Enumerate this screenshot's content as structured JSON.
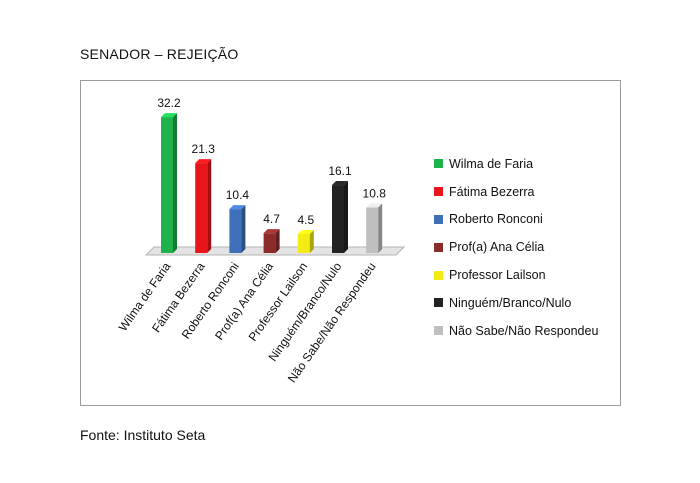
{
  "heading": "SENADOR – REJEIÇÃO",
  "source": "Fonte: Instituto Seta",
  "chart_data": {
    "type": "bar",
    "title": "",
    "xlabel": "",
    "ylabel": "",
    "ylim": [
      0,
      35
    ],
    "grid": false,
    "legend_position": "right",
    "categories": [
      "Wilma de Faria",
      "Fátima Bezerra",
      "Roberto Ronconi",
      "Prof(a) Ana Célia",
      "Professor Lailson",
      "Ninguém/Branco/Nulo",
      "Não Sabe/Não Respondeu"
    ],
    "values": [
      32.2,
      21.3,
      10.4,
      4.7,
      4.5,
      16.1,
      10.8
    ],
    "value_labels": [
      "32.2",
      "21.3",
      "10.4",
      "4.7",
      "4.5",
      "16.1",
      "10.8"
    ],
    "colors": [
      "#1db34a",
      "#e8161b",
      "#3f6fb8",
      "#8b2b2b",
      "#f2ec12",
      "#222222",
      "#bfbfbf"
    ],
    "legend": [
      "Wilma de Faria",
      "Fátima Bezerra",
      "Roberto Ronconi",
      "Prof(a) Ana Célia",
      "Professor Lailson",
      "Ninguém/Branco/Nulo",
      "Não Sabe/Não Respondeu"
    ]
  }
}
